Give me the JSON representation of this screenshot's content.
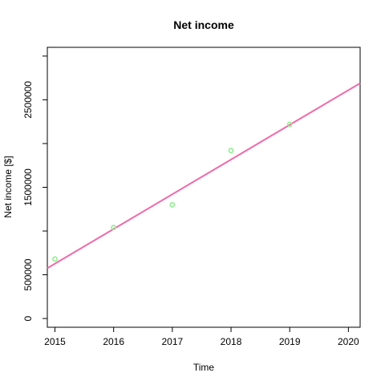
{
  "chart_data": {
    "type": "scatter",
    "title": "Net income",
    "xlabel": "Time",
    "ylabel": "Net income [$]",
    "xlim": [
      2014.87,
      2020.2
    ],
    "ylim": [
      -100000,
      3100000
    ],
    "x_ticks": [
      2015,
      2016,
      2017,
      2018,
      2019,
      2020
    ],
    "y_ticks": [
      0,
      500000,
      1000000,
      1500000,
      2000000,
      2500000,
      3000000
    ],
    "y_tick_labels": [
      "0",
      "500000",
      "",
      "1500000",
      "",
      "2500000",
      ""
    ],
    "points": {
      "x": [
        2015,
        2016,
        2017,
        2018,
        2019
      ],
      "y": [
        680000,
        1040000,
        1300000,
        1920000,
        2220000
      ],
      "color": "#90EE90"
    },
    "trend_line": {
      "x": [
        2014.87,
        2020.2
      ],
      "y": [
        575000,
        2690000
      ],
      "color": "#F06BAA"
    },
    "grid": false,
    "legend": "none"
  }
}
